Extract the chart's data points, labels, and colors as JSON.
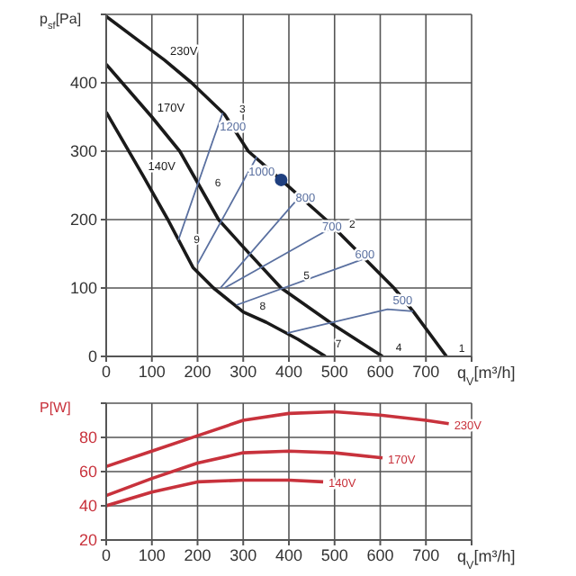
{
  "chart_data": [
    {
      "type": "line",
      "xlabel": "q$_{V}$[m³/h]",
      "ylabel": "p$_{sf}$[Pa]",
      "xlim": [
        0,
        800
      ],
      "xticks": [
        0,
        100,
        200,
        300,
        400,
        500,
        600,
        700,
        {
          "value": 800,
          "label": null
        }
      ],
      "ylim": [
        0,
        500
      ],
      "yticks": [
        0,
        100,
        200,
        300,
        400,
        {
          "value": 500,
          "label": null
        }
      ],
      "grid": true,
      "series": [
        {
          "name": "230V",
          "color": "#1a1a1a",
          "x": [
            0,
            128,
            187,
            259,
            311,
            383,
            481,
            630,
            672,
            745
          ],
          "values": [
            497,
            433,
            400,
            354,
            300,
            258,
            200,
            100,
            66,
            0
          ]
        },
        {
          "name": "170V",
          "color": "#1a1a1a",
          "x": [
            0,
            100,
            161,
            246,
            300,
            383,
            500,
            605
          ],
          "values": [
            427,
            350,
            300,
            200,
            160,
            100,
            45,
            0
          ]
        },
        {
          "name": "140V",
          "color": "#1a1a1a",
          "x": [
            0,
            80,
            135,
            190,
            235,
            300,
            350,
            420,
            480
          ],
          "values": [
            357,
            265,
            200,
            130,
            100,
            65,
            50,
            25,
            0
          ]
        },
        {
          "name": "1200",
          "color": "#5a70a0",
          "x": [
            158,
            237,
            255
          ],
          "values": [
            170,
            322,
            356
          ]
        },
        {
          "name": "1000",
          "color": "#5a70a0",
          "x": [
            200,
            300,
            330
          ],
          "values": [
            135,
            256,
            292
          ]
        },
        {
          "name": "800",
          "color": "#5a70a0",
          "x": [
            250,
            403,
            422
          ],
          "values": [
            100,
            218,
            232
          ]
        },
        {
          "name": "700",
          "color": "#5a70a0",
          "x": [
            259,
            461,
            494
          ],
          "values": [
            100,
            176,
            188
          ]
        },
        {
          "name": "600",
          "color": "#5a70a0",
          "x": [
            285,
            533,
            573
          ],
          "values": [
            75,
            135,
            145
          ]
        },
        {
          "name": "500",
          "color": "#5a70a0",
          "x": [
            396,
            616,
            672
          ],
          "values": [
            34,
            69,
            66
          ]
        },
        {
          "type": "scatter",
          "color": "#1f3f7f",
          "x": [
            383
          ],
          "values": [
            258
          ]
        }
      ],
      "annotations": [
        {
          "text": "1",
          "x": 760,
          "y": 6
        },
        {
          "text": "2",
          "x": 520,
          "y": 188
        },
        {
          "text": "3",
          "x": 280,
          "y": 356
        },
        {
          "text": "4",
          "x": 622,
          "y": 8
        },
        {
          "text": "5",
          "x": 420,
          "y": 113
        },
        {
          "text": "6",
          "x": 226,
          "y": 249
        },
        {
          "text": "7",
          "x": 490,
          "y": 13
        },
        {
          "text": "8",
          "x": 324,
          "y": 69
        },
        {
          "text": "9",
          "x": 180,
          "y": 166
        }
      ]
    },
    {
      "type": "line",
      "xlabel": "q$_{V}$[m³/h]",
      "ylabel": "P[W]",
      "xlim": [
        0,
        800
      ],
      "xticks": [
        0,
        100,
        200,
        300,
        400,
        500,
        600,
        700,
        {
          "value": 800,
          "label": null
        }
      ],
      "ylim": [
        20,
        100
      ],
      "yticks": [
        20,
        40,
        60,
        80,
        {
          "value": 100,
          "label": null
        }
      ],
      "grid": true,
      "series": [
        {
          "name": "230V",
          "color": "#c8323c",
          "x": [
            0,
            100,
            200,
            300,
            400,
            500,
            600,
            700,
            750
          ],
          "values": [
            63,
            72,
            81,
            90,
            94,
            95,
            93,
            90,
            88
          ]
        },
        {
          "name": "170V",
          "color": "#c8323c",
          "x": [
            0,
            100,
            200,
            300,
            400,
            500,
            605
          ],
          "values": [
            46,
            56,
            65,
            71,
            72,
            71,
            68
          ]
        },
        {
          "name": "140V",
          "color": "#c8323c",
          "x": [
            0,
            100,
            200,
            300,
            400,
            475
          ],
          "values": [
            40,
            48,
            54,
            55,
            55,
            54
          ]
        }
      ]
    }
  ]
}
